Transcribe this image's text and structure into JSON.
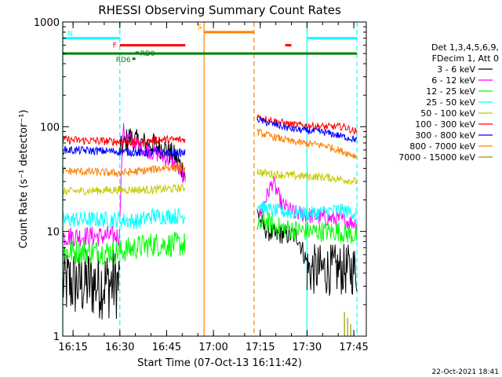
{
  "chart_data": {
    "type": "line",
    "title": "RHESSI Observing Summary Count Rates",
    "xlabel": "Start Time (07-Oct-13 16:11:42)",
    "ylabel": "Count Rate (s⁻¹ detector⁻¹)",
    "yscale": "log",
    "ylim": [
      1,
      1000
    ],
    "xlim": [
      "16:11:42",
      "17:49:00"
    ],
    "x_ticks": [
      "16:15",
      "16:30",
      "16:45",
      "17:00",
      "17:15",
      "17:30",
      "17:45"
    ],
    "y_ticks": [
      "1",
      "10",
      "100",
      "1000"
    ],
    "legend_header": [
      "Det 1,3,4,5,6,9,",
      "FDecim 1, Att 0"
    ],
    "legend_position": "right",
    "footer_date": "22-Oct-2021 18:41",
    "series": [
      {
        "name": "3 - 6 keV",
        "color": "#000000",
        "segments": [
          {
            "t": [
              "16:11:42",
              "16:30:00"
            ],
            "y": [
              3.2,
              3.2
            ],
            "noise": 0.35
          },
          {
            "t": [
              "16:30:00",
              "16:33:00",
              "16:36:00",
              "16:40:00",
              "16:44:00",
              "16:48:00",
              "16:51:00"
            ],
            "y": [
              60,
              80,
              70,
              68,
              63,
              50,
              35
            ],
            "noise": 0.12
          },
          {
            "t": [
              "17:14:00",
              "17:16:00",
              "17:20:00",
              "17:22:00",
              "17:27:00",
              "17:30:00"
            ],
            "y": [
              15,
              11,
              9,
              9.5,
              9,
              5
            ],
            "noise": 0.1
          },
          {
            "t": [
              "17:30:00",
              "17:39:00",
              "17:46:00"
            ],
            "y": [
              4.3,
              4.3,
              4.3
            ],
            "noise": 0.25
          }
        ]
      },
      {
        "name": "6 - 12 keV",
        "color": "#ff00ff",
        "segments": [
          {
            "t": [
              "16:11:42",
              "16:30:00"
            ],
            "y": [
              9,
              9
            ],
            "noise": 0.1
          },
          {
            "t": [
              "16:30:00",
              "16:31:00",
              "16:32:00",
              "16:36:00",
              "16:40:00",
              "16:45:00",
              "16:48:00",
              "16:51:00"
            ],
            "y": [
              15,
              95,
              80,
              65,
              58,
              50,
              42,
              32
            ],
            "noise": 0.08
          },
          {
            "t": [
              "17:14:00",
              "17:16:00",
              "17:19:00",
              "17:22:00",
              "17:26:00",
              "17:32:00",
              "17:40:00",
              "17:46:00"
            ],
            "y": [
              12,
              18,
              30,
              18,
              15,
              14,
              13,
              12
            ],
            "noise": 0.08
          }
        ]
      },
      {
        "name": "12 - 25 keV",
        "color": "#00ff00",
        "segments": [
          {
            "t": [
              "16:11:42",
              "16:30:00",
              "16:33:00",
              "16:37:00",
              "16:40:00",
              "16:51:00"
            ],
            "y": [
              6.4,
              6.4,
              6.8,
              7.2,
              7.5,
              7.5
            ],
            "noise": 0.12
          },
          {
            "t": [
              "17:14:00",
              "17:16:00",
              "17:20:00",
              "17:30:00",
              "17:40:00",
              "17:46:00"
            ],
            "y": [
              10,
              13,
              11,
              10,
              10,
              9
            ],
            "noise": 0.1
          }
        ]
      },
      {
        "name": "25 - 50 keV",
        "color": "#00ffff",
        "segments": [
          {
            "t": [
              "16:11:42",
              "16:30:00",
              "16:36:00",
              "16:40:00",
              "16:51:00"
            ],
            "y": [
              13,
              13,
              12.5,
              14,
              14
            ],
            "noise": 0.08
          },
          {
            "t": [
              "17:14:00",
              "17:18:00",
              "17:26:00",
              "17:32:00",
              "17:40:00",
              "17:46:00"
            ],
            "y": [
              18,
              16,
              15,
              15,
              16,
              15
            ],
            "noise": 0.07
          }
        ]
      },
      {
        "name": "50 - 100 keV",
        "color": "#c8c800",
        "segments": [
          {
            "t": [
              "16:11:42",
              "16:30:00",
              "16:40:00",
              "16:51:00"
            ],
            "y": [
              24,
              25,
              25,
              26
            ],
            "noise": 0.04
          },
          {
            "t": [
              "17:14:00",
              "17:16:00",
              "17:26:00",
              "17:36:00",
              "17:46:00"
            ],
            "y": [
              38,
              36,
              34,
              33,
              30
            ],
            "noise": 0.04
          }
        ]
      },
      {
        "name": "100 - 300 keV",
        "color": "#ff0000",
        "segments": [
          {
            "t": [
              "16:11:42",
              "16:30:00",
              "16:38:00",
              "16:41:00",
              "16:51:00"
            ],
            "y": [
              75,
              72,
              70,
              75,
              75
            ],
            "noise": 0.04
          },
          {
            "t": [
              "17:14:00",
              "17:16:00",
              "17:25:00",
              "17:36:00",
              "17:42:00",
              "17:46:00"
            ],
            "y": [
              125,
              120,
              105,
              100,
              100,
              88
            ],
            "noise": 0.035
          }
        ]
      },
      {
        "name": "300 - 800 keV",
        "color": "#0000ff",
        "segments": [
          {
            "t": [
              "16:11:42",
              "16:30:00",
              "16:38:00",
              "16:41:00",
              "16:51:00"
            ],
            "y": [
              60,
              58,
              56,
              57,
              56
            ],
            "noise": 0.04
          },
          {
            "t": [
              "17:14:00",
              "17:16:00",
              "17:25:00",
              "17:36:00",
              "17:46:00"
            ],
            "y": [
              120,
              112,
              95,
              88,
              75
            ],
            "noise": 0.035
          }
        ]
      },
      {
        "name": "800 - 7000 keV",
        "color": "#ff8000",
        "segments": [
          {
            "t": [
              "16:11:42",
              "16:30:00",
              "16:38:00",
              "16:45:00",
              "16:51:00"
            ],
            "y": [
              38,
              36,
              38,
              41,
              40
            ],
            "noise": 0.04
          },
          {
            "t": [
              "17:14:00",
              "17:16:00",
              "17:25:00",
              "17:36:00",
              "17:46:00"
            ],
            "y": [
              90,
              85,
              72,
              66,
              52
            ],
            "noise": 0.035
          }
        ]
      },
      {
        "name": "7000 - 15000 keV",
        "color": "#999900",
        "segments": [],
        "spikes": [
          {
            "t": "17:42:00",
            "y": 1.7
          },
          {
            "t": "17:43:00",
            "y": 1.5
          },
          {
            "t": "17:44:00",
            "y": 1.3
          }
        ]
      }
    ],
    "annotations": [
      {
        "label": "N",
        "color": "#00ffff",
        "t0": "16:11:42",
        "t1": "16:30:00",
        "y": 700
      },
      {
        "label": "",
        "color": "#00ffff",
        "t0": "17:30:00",
        "t1": "17:46:00",
        "y": 700
      },
      {
        "label": "F",
        "color": "#ff0000",
        "t0": "16:30:00",
        "t1": "16:51:00",
        "y": 600
      },
      {
        "label": "",
        "color": "#ff0000",
        "t0": "17:23:00",
        "t1": "17:25:00",
        "y": 600
      },
      {
        "label": "S",
        "color": "#ff8000",
        "t0": "16:57:00",
        "t1": "17:13:00",
        "y": 800
      },
      {
        "label": "RD0",
        "color": "#008000",
        "t0": "16:35:00",
        "t1": "16:36:00",
        "y": 510
      },
      {
        "label": "RD6",
        "color": "#008000",
        "t0": "16:34:00",
        "t1": "16:35:00",
        "y": 445
      },
      {
        "label": "",
        "color": "#008000",
        "t0": "16:11:42",
        "t1": "17:46:00",
        "y": 500
      }
    ],
    "vlines": [
      {
        "t": "16:11:42",
        "color": "#00ffff",
        "dash": false
      },
      {
        "t": "16:30:00",
        "color": "#00ffff",
        "dash": true
      },
      {
        "t": "16:57:00",
        "color": "#ff8000",
        "dash": false
      },
      {
        "t": "17:13:00",
        "color": "#ff8000",
        "dash": true
      },
      {
        "t": "17:30:00",
        "color": "#00ffff",
        "dash": false
      },
      {
        "t": "17:46:00",
        "color": "#00ffff",
        "dash": true
      }
    ]
  }
}
